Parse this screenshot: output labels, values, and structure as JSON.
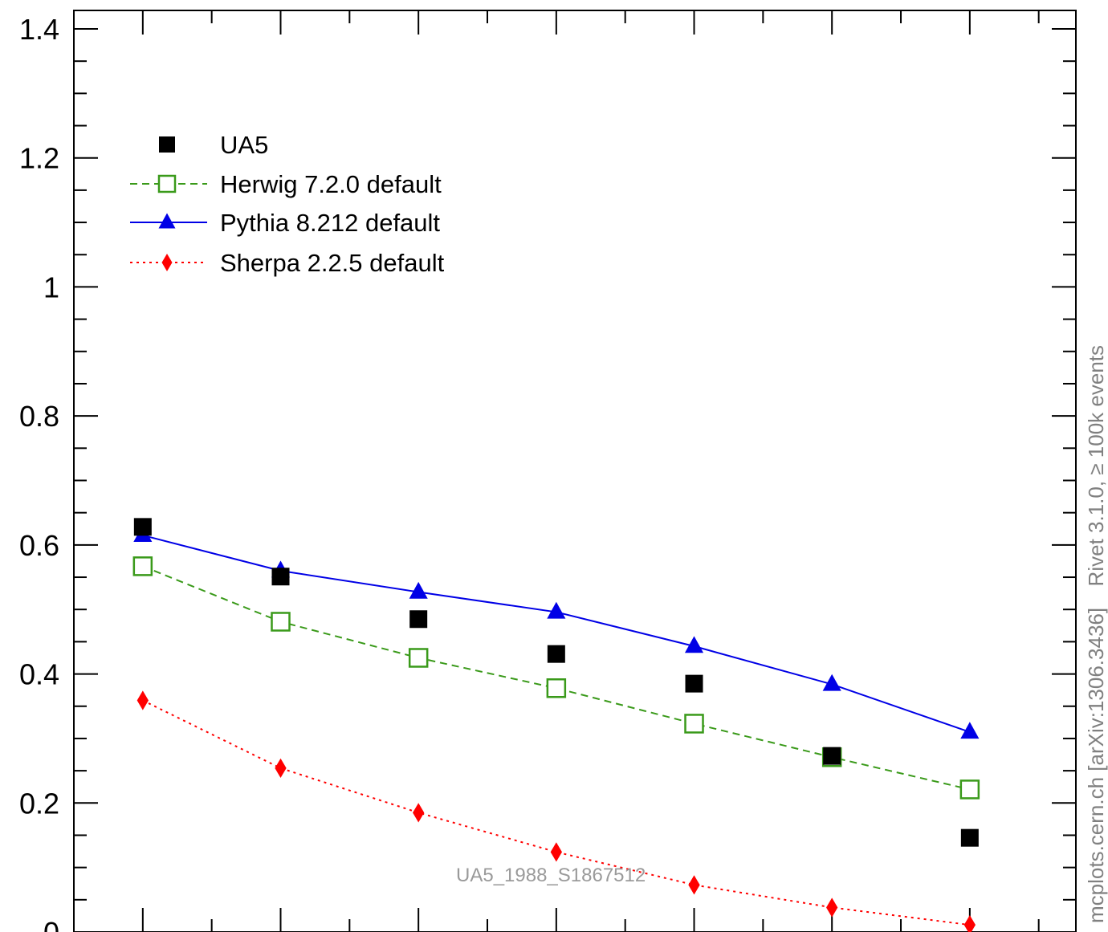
{
  "chart_data": {
    "type": "scatter",
    "x": [
      1,
      2,
      3,
      4,
      5,
      6,
      7
    ],
    "xlim": [
      0.5,
      7.75
    ],
    "ylim": [
      0,
      1.4
    ],
    "yticks": [
      0,
      0.2,
      0.4,
      0.6,
      0.8,
      1,
      1.2,
      1.4
    ],
    "ytick_labels": [
      "0",
      "0.2",
      "0.4",
      "0.6",
      "0.8",
      "1",
      "1.2",
      "1.4"
    ],
    "grid": false,
    "legend_position": "top-left",
    "series": [
      {
        "name": "UA5",
        "marker": "filled-square",
        "line": "none",
        "color": "#000000",
        "values": [
          0.628,
          0.551,
          0.485,
          0.431,
          0.385,
          0.273,
          0.146
        ]
      },
      {
        "name": "Herwig 7.2.0 default",
        "marker": "open-square",
        "line": "dashed",
        "color": "#3a9a1a",
        "values": [
          0.567,
          0.481,
          0.425,
          0.378,
          0.323,
          0.271,
          0.221
        ]
      },
      {
        "name": "Pythia 8.212 default",
        "marker": "filled-triangle",
        "line": "solid",
        "color": "#0000e6",
        "values": [
          0.615,
          0.56,
          0.527,
          0.496,
          0.443,
          0.384,
          0.31
        ]
      },
      {
        "name": "Sherpa 2.2.5 default",
        "marker": "filled-diamond",
        "line": "dotted",
        "color": "#ff0000",
        "values": [
          0.359,
          0.254,
          0.185,
          0.124,
          0.073,
          0.038,
          0.011
        ]
      }
    ],
    "watermark": "UA5_1988_S1867512",
    "side_labels": {
      "upper": "Rivet 3.1.0, ≥ 100k events",
      "lower": "mcplots.cern.ch [arXiv:1306.3436]"
    }
  }
}
